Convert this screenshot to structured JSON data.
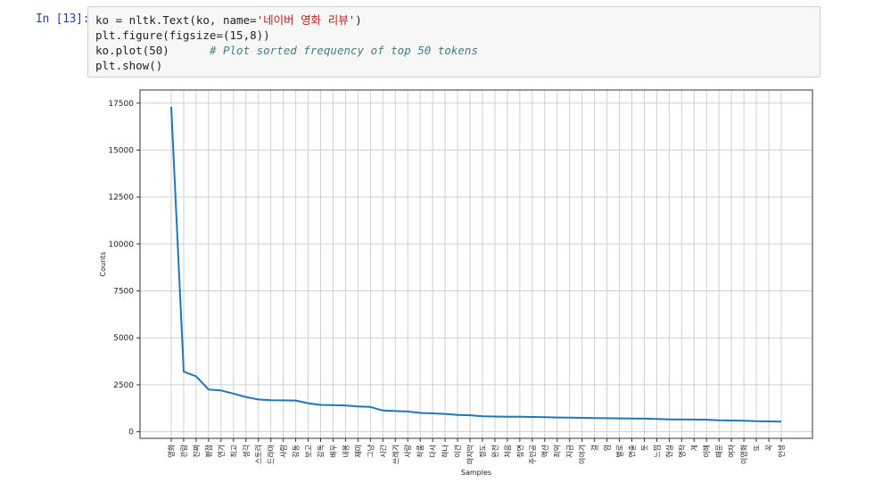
{
  "cell": {
    "prompt": "In [13]:",
    "lines": [
      {
        "pre": "ko = nltk.Text(ko, name=",
        "str": "'네이버 영화 리뷰'",
        "post": ")"
      },
      {
        "pre": "plt.figure(figsize=(15,8))"
      },
      {
        "pre": "ko.plot(50)",
        "comment": "# Plot sorted frequency of top 50 tokens"
      },
      {
        "pre": "plt.show()"
      }
    ]
  },
  "chart_data": {
    "type": "line",
    "xlabel": "Samples",
    "ylabel": "Counts",
    "ylim": [
      -350,
      18200
    ],
    "yticks": [
      0,
      2500,
      5000,
      7500,
      10000,
      12500,
      15000,
      17500
    ],
    "grid": true,
    "line_color": "#1f77b4",
    "categories": [
      "영화",
      "관람",
      "진짜",
      "평점",
      "연기",
      "최고",
      "생각",
      "스토리",
      "드라마",
      "사람",
      "감동",
      "보고",
      "감독",
      "배우",
      "내용",
      "재미",
      "그냥",
      "시간",
      "쓰레기",
      "사랑",
      "작품",
      "다시",
      "하나",
      "이건",
      "마지막",
      "정도",
      "완전",
      "처음",
      "장면",
      "주인공",
      "액션",
      "최악",
      "지금",
      "이야기",
      "걸",
      "임",
      "별로",
      "연출",
      "듯",
      "느낌",
      "현실",
      "명작",
      "게",
      "이해",
      "때문",
      "여자",
      "이영화",
      "또",
      "꼭",
      "인생"
    ],
    "values": [
      17300,
      3200,
      2950,
      2250,
      2200,
      2030,
      1850,
      1720,
      1680,
      1670,
      1660,
      1520,
      1430,
      1420,
      1400,
      1350,
      1320,
      1130,
      1100,
      1080,
      1000,
      980,
      950,
      900,
      880,
      820,
      810,
      800,
      800,
      790,
      780,
      760,
      750,
      740,
      730,
      720,
      715,
      710,
      700,
      680,
      660,
      650,
      650,
      640,
      610,
      600,
      590,
      560,
      550,
      540
    ]
  }
}
